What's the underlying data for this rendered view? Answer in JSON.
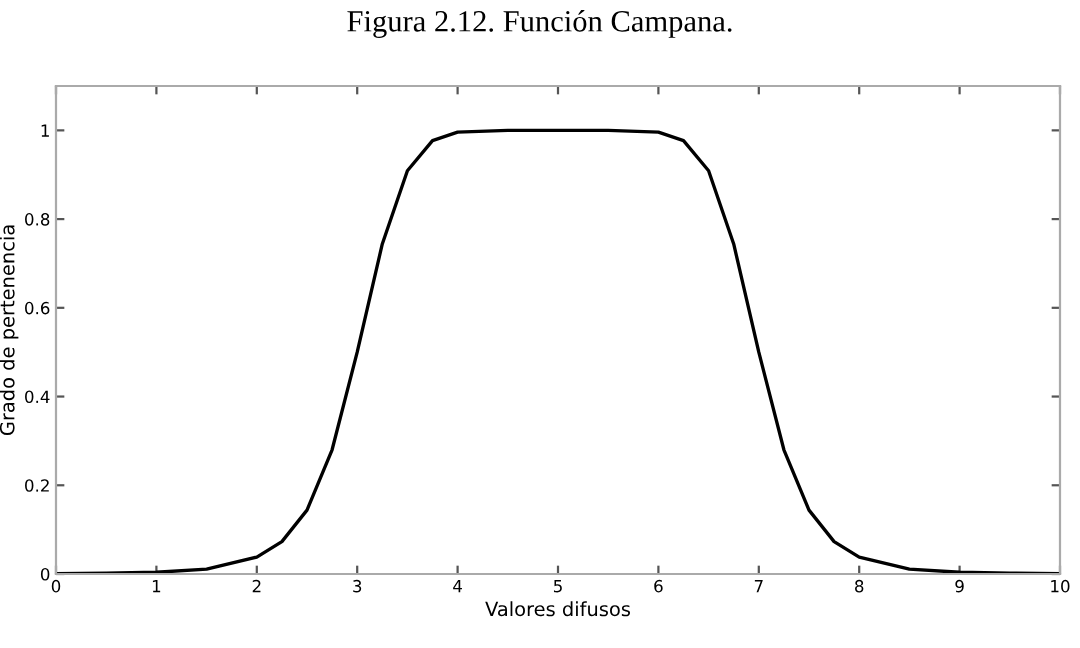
{
  "chart_data": {
    "type": "line",
    "title": "Figura 2.12. Función Campana.",
    "xlabel": "Valores difusos",
    "ylabel": "Grado de pertenencia",
    "x": [
      0,
      0.5,
      1,
      1.5,
      2,
      2.25,
      2.5,
      2.75,
      3,
      3.25,
      3.5,
      3.75,
      4,
      4.5,
      5,
      5.5,
      6,
      6.25,
      6.5,
      6.75,
      7,
      7.25,
      7.5,
      7.75,
      8,
      8.5,
      9,
      9.5,
      10
    ],
    "series": [
      {
        "color": "#000000",
        "values": [
          0.001,
          0.002,
          0.004,
          0.011,
          0.038,
          0.073,
          0.144,
          0.28,
          0.5,
          0.744,
          0.909,
          0.977,
          0.996,
          1,
          1,
          1,
          0.996,
          0.977,
          0.909,
          0.744,
          0.5,
          0.28,
          0.144,
          0.073,
          0.038,
          0.011,
          0.004,
          0.002,
          0.001
        ]
      }
    ],
    "xlim": [
      0,
      10
    ],
    "ylim": [
      0,
      1.1
    ],
    "xticks": [
      0,
      1,
      2,
      3,
      4,
      5,
      6,
      7,
      8,
      9,
      10
    ],
    "yticks": [
      0,
      0.2,
      0.4,
      0.6,
      0.8,
      1
    ],
    "grid": false,
    "legend": false,
    "marker": "none",
    "line_style": "solid"
  }
}
